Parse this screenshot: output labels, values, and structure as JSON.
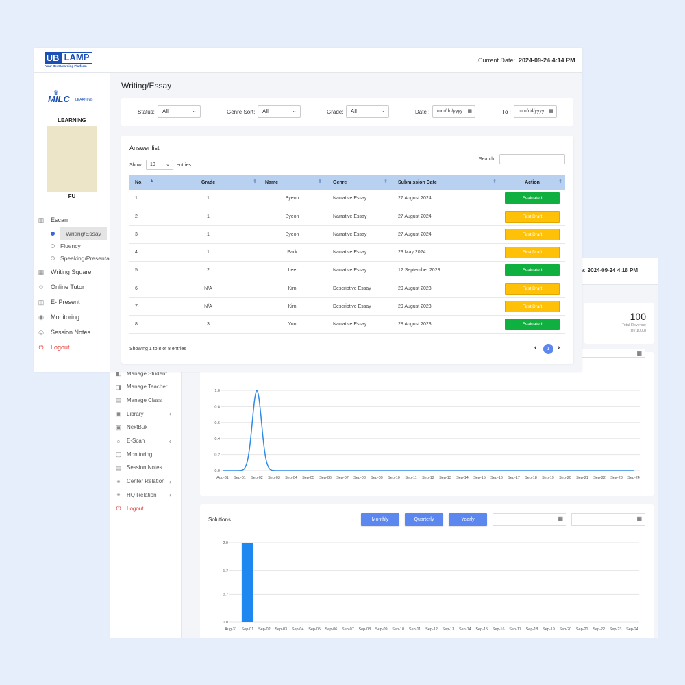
{
  "back": {
    "current_date_label": "e:",
    "current_date_value": "2024-09-24 4:18 PM",
    "revenue": {
      "value": "100",
      "label": "Total Revenue",
      "unit": "(By 1000)"
    },
    "sidebar": [
      {
        "name": "manage-student",
        "label": "Manage Student",
        "icon": "user-icon",
        "chev": false
      },
      {
        "name": "manage-teacher",
        "label": "Manage Teacher",
        "icon": "teacher-icon",
        "chev": false
      },
      {
        "name": "manage-class",
        "label": "Manage Class",
        "icon": "class-icon",
        "chev": false
      },
      {
        "name": "library",
        "label": "Library",
        "icon": "book-icon",
        "chev": true
      },
      {
        "name": "nextbuk",
        "label": "NextBuk",
        "icon": "book-icon",
        "chev": false
      },
      {
        "name": "e-scan",
        "label": "E-Scan",
        "icon": "scan-icon",
        "chev": true
      },
      {
        "name": "monitoring",
        "label": "Monitoring",
        "icon": "monitor-icon",
        "chev": false
      },
      {
        "name": "session-notes",
        "label": "Session Notes",
        "icon": "notes-icon",
        "chev": false
      },
      {
        "name": "center-relation",
        "label": "Center Relation",
        "icon": "link-icon",
        "chev": true
      },
      {
        "name": "hq-relation",
        "label": "HQ Relation",
        "icon": "link-icon",
        "chev": true
      },
      {
        "name": "logout",
        "label": "Logout",
        "icon": "power-icon",
        "chev": false
      }
    ],
    "solutions_title": "Solutions",
    "buttons": {
      "monthly": "Monthly",
      "quarterly": "Quarterly",
      "yearly": "Yearly"
    }
  },
  "chart_data": [
    {
      "type": "line",
      "title": "",
      "categories": [
        "Aug-31",
        "Sep-01",
        "Sep-02",
        "Sep-03",
        "Sep-04",
        "Sep-05",
        "Sep-06",
        "Sep-07",
        "Sep-08",
        "Sep-09",
        "Sep-10",
        "Sep-11",
        "Sep-12",
        "Sep-13",
        "Sep-14",
        "Sep-15",
        "Sep-16",
        "Sep-17",
        "Sep-18",
        "Sep-19",
        "Sep-20",
        "Sep-21",
        "Sep-22",
        "Sep-23",
        "Sep-24"
      ],
      "values": [
        0,
        0,
        1,
        0,
        0,
        0,
        0,
        0,
        0,
        0,
        0,
        0,
        0,
        0,
        0,
        0,
        0,
        0,
        0,
        0,
        0,
        0,
        0,
        0,
        0
      ],
      "yticks": [
        "0.0",
        "0.2",
        "0.4",
        "0.6",
        "0.8",
        "1.0"
      ],
      "ylim": [
        0,
        1
      ],
      "color": "#2f8be6",
      "grid": true
    },
    {
      "type": "bar",
      "title": "Solutions",
      "categories": [
        "Aug-31",
        "Sep-01",
        "Sep-02",
        "Sep-03",
        "Sep-04",
        "Sep-05",
        "Sep-06",
        "Sep-07",
        "Sep-08",
        "Sep-09",
        "Sep-10",
        "Sep-11",
        "Sep-12",
        "Sep-13",
        "Sep-14",
        "Sep-15",
        "Sep-16",
        "Sep-17",
        "Sep-18",
        "Sep-19",
        "Sep-20",
        "Sep-21",
        "Sep-22",
        "Sep-23",
        "Sep-24"
      ],
      "values": [
        0,
        2,
        0,
        0,
        0,
        0,
        0,
        0,
        0,
        0,
        0,
        0,
        0,
        0,
        0,
        0,
        0,
        0,
        0,
        0,
        0,
        0,
        0,
        0,
        0
      ],
      "yticks": [
        "0.0",
        "0.7",
        "1.3",
        "2.0"
      ],
      "ylim": [
        0,
        2
      ],
      "color": "#1e88f0",
      "grid": true
    }
  ],
  "front": {
    "logo": {
      "ub": "UB",
      "lamp": "LAMP",
      "tagline": "Your Best Learning Platform"
    },
    "current_date_label": "Current Date:",
    "current_date_value": "2024-09-24 4:14 PM",
    "side": {
      "brand": {
        "milc": "MILC",
        "small": "LEARNING"
      },
      "learning": "LEARNING",
      "user": "FU",
      "escan": "Escan",
      "sub": [
        "Writing/Essay",
        "Fluency",
        "Speaking/Presenta"
      ],
      "writing_square": "Writing Square",
      "online_tutor": "Online Tutor",
      "e_present": "E- Present",
      "monitoring": "Monitoring",
      "session_notes": "Session Notes",
      "logout": "Logout"
    },
    "page_title": "Writing/Essay",
    "filters": {
      "status_label": "Status:",
      "status_value": "All",
      "genre_label": "Genre Sort:",
      "genre_value": "All",
      "grade_label": "Grade:",
      "grade_value": "All",
      "date_label": "Date :",
      "date_placeholder": "mm/dd/yyyy",
      "to_label": "To :",
      "to_placeholder": "mm/dd/yyyy"
    },
    "list": {
      "title": "Answer list",
      "show_label": "Show",
      "show_value": "10",
      "entries_label": "entries",
      "search_label": "Search:",
      "columns": [
        "No.",
        "Grade",
        "Name",
        "Genre",
        "Submission Date",
        "Action"
      ],
      "rows": [
        {
          "no": "1",
          "grade": "1",
          "name": "Byeon",
          "genre": "Narrative Essay",
          "date": "27 August 2024",
          "action": "Evaluated"
        },
        {
          "no": "2",
          "grade": "1",
          "name": "Byeon",
          "genre": "Narrative Essay",
          "date": "27 August 2024",
          "action": "First Draft"
        },
        {
          "no": "3",
          "grade": "1",
          "name": "Byeon",
          "genre": "Narrative Essay",
          "date": "27 August 2024",
          "action": "First Draft"
        },
        {
          "no": "4",
          "grade": "1",
          "name": "Park",
          "genre": "Narrative Essay",
          "date": "23 May 2024",
          "action": "First Draft"
        },
        {
          "no": "5",
          "grade": "2",
          "name": "Lee",
          "genre": "Narrative Essay",
          "date": "12 September 2023",
          "action": "Evaluated"
        },
        {
          "no": "6",
          "grade": "N/A",
          "name": "Kim",
          "genre": "Descriptive Essay",
          "date": "29 August 2023",
          "action": "First Draft"
        },
        {
          "no": "7",
          "grade": "N/A",
          "name": "Kim",
          "genre": "Descriptive Essay",
          "date": "29 August 2023",
          "action": "First Draft"
        },
        {
          "no": "8",
          "grade": "3",
          "name": "Yun",
          "genre": "Narrative Essay",
          "date": "28 August 2023",
          "action": "Evaluated"
        }
      ],
      "showing": "Showing 1 to 8 of 8 entries",
      "page": "1"
    },
    "colors": {
      "evaluated": "#10b040",
      "first_draft": "#ffc107",
      "accent": "#5b87ef"
    }
  }
}
